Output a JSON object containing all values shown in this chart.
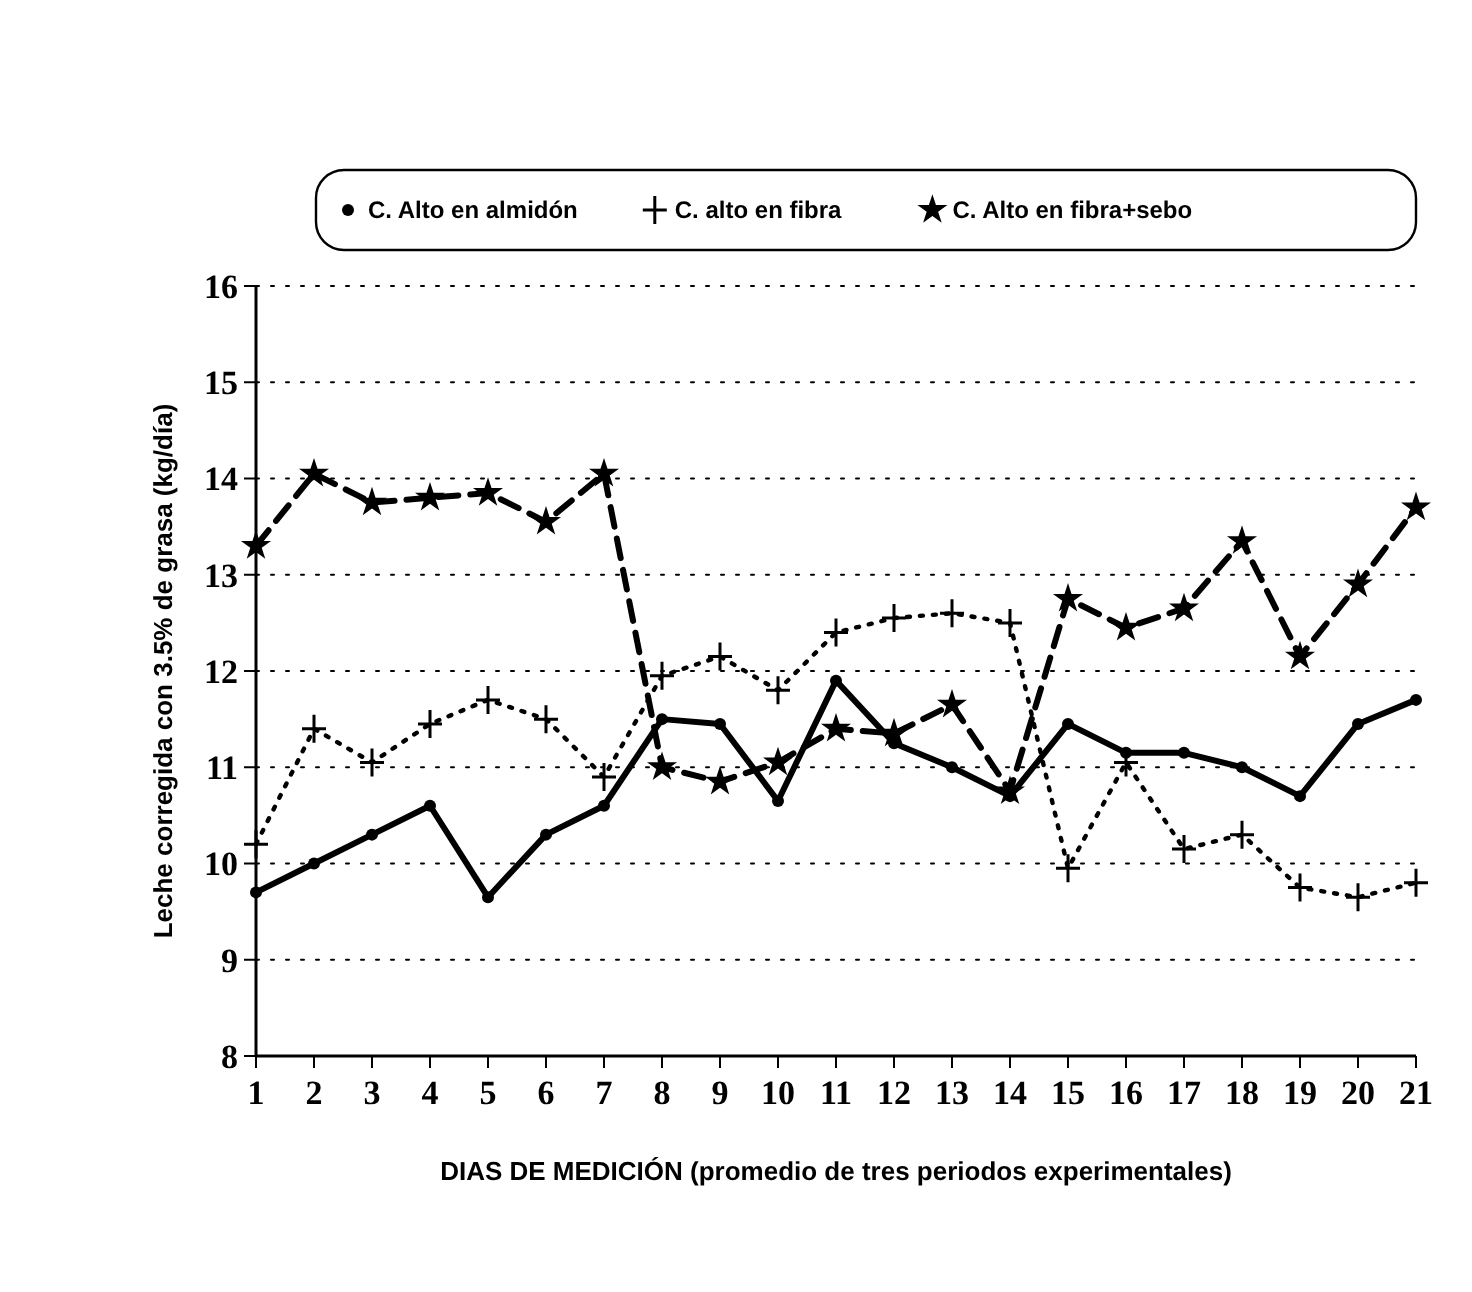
{
  "chart_data": {
    "type": "line",
    "xlabel": "DIAS DE MEDICIÓN (promedio de tres periodos experimentales)",
    "ylabel": "Leche corregida con 3.5% de grasa (kg/día)",
    "x": [
      1,
      2,
      3,
      4,
      5,
      6,
      7,
      8,
      9,
      10,
      11,
      12,
      13,
      14,
      15,
      16,
      17,
      18,
      19,
      20,
      21
    ],
    "xlim": [
      1,
      21
    ],
    "xticks": [
      1,
      2,
      3,
      4,
      5,
      6,
      7,
      8,
      9,
      10,
      11,
      12,
      13,
      14,
      15,
      16,
      17,
      18,
      19,
      20,
      21
    ],
    "ylim": [
      8,
      16
    ],
    "yticks": [
      8,
      9,
      10,
      11,
      12,
      13,
      14,
      15,
      16
    ],
    "grid": "y",
    "legend": "top",
    "series": [
      {
        "name": "C. Alto en almidón",
        "color": "#000000",
        "marker": "circle",
        "line_style": "solid",
        "values": [
          9.7,
          10.0,
          10.3,
          10.6,
          9.65,
          10.3,
          10.6,
          11.5,
          11.45,
          10.65,
          11.9,
          11.25,
          11.0,
          10.7,
          11.45,
          11.15,
          11.15,
          11.0,
          10.7,
          11.45,
          11.7
        ]
      },
      {
        "name": "C. alto en fibra",
        "color": "#000000",
        "marker": "cross",
        "line_style": "dotted",
        "values": [
          10.2,
          11.4,
          11.05,
          11.45,
          11.7,
          11.5,
          10.9,
          11.95,
          12.15,
          11.8,
          12.4,
          12.55,
          12.6,
          12.5,
          9.95,
          11.05,
          10.15,
          10.3,
          9.75,
          9.65,
          9.8
        ]
      },
      {
        "name": "C. Alto en fibra+sebo",
        "color": "#000000",
        "marker": "star",
        "line_style": "dashed",
        "values": [
          13.3,
          14.05,
          13.75,
          13.8,
          13.85,
          13.55,
          14.05,
          11.0,
          10.85,
          11.05,
          11.4,
          11.35,
          11.65,
          10.75,
          12.75,
          12.45,
          12.65,
          13.35,
          12.15,
          12.9,
          13.7
        ]
      }
    ]
  }
}
